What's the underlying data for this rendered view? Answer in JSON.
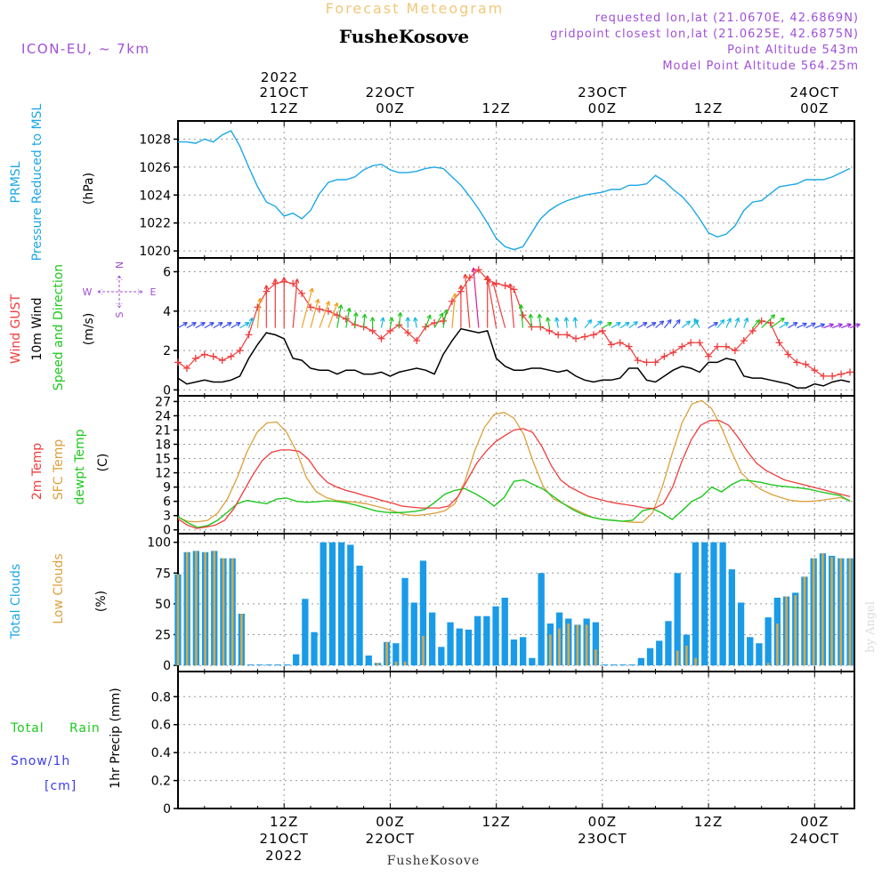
{
  "header": {
    "title": "Forecast Meteogram",
    "location": "FusheKosove",
    "model": "ICON-EU, ~ 7km",
    "requested": "requested lon,lat (21.0670E, 42.6869N)",
    "gridpoint": "gridpoint closest lon,lat (21.0625E, 42.6875N)",
    "point_alt": "Point Altitude 543m",
    "model_alt": "Model Point Altitude 564.25m"
  },
  "colors": {
    "pressure": "#1ca8e6",
    "gust": "#f03c3c",
    "wind": "#000000",
    "speed_dir": "#1ec81e",
    "t2m": "#f03c3c",
    "tsfc": "#dca03c",
    "dewpt": "#1ec81e",
    "total_clouds": "#1a9be8",
    "low_clouds": "#d8a848",
    "rain": "#1ec81e",
    "snow": "#3c3cf0",
    "title": "#f0c878",
    "purple": "#a050d8"
  },
  "time_axis": {
    "top_year": "2022",
    "top_labels": [
      {
        "l1": "21OCT",
        "l2": "12Z",
        "t": 12
      },
      {
        "l1": "22OCT",
        "l2": "00Z",
        "t": 24
      },
      {
        "l1": "",
        "l2": "12Z",
        "t": 36
      },
      {
        "l1": "23OCT",
        "l2": "00Z",
        "t": 48
      },
      {
        "l1": "",
        "l2": "12Z",
        "t": 60
      },
      {
        "l1": "24OCT",
        "l2": "00Z",
        "t": 72
      }
    ],
    "bottom_labels": [
      {
        "l1": "12Z",
        "l2": "21OCT",
        "l3": "2022",
        "t": 12
      },
      {
        "l1": "00Z",
        "l2": "22OCT",
        "l3": "",
        "t": 24
      },
      {
        "l1": "12Z",
        "l2": "",
        "l3": "",
        "t": 36
      },
      {
        "l1": "00Z",
        "l2": "23OCT",
        "l3": "",
        "t": 48
      },
      {
        "l1": "12Z",
        "l2": "",
        "l3": "",
        "t": 60
      },
      {
        "l1": "00Z",
        "l2": "24OCT",
        "l3": "",
        "t": 72
      }
    ],
    "footer": "FusheKosove"
  },
  "panels": {
    "pressure": {
      "label1": "PRMSL",
      "label2": "Pressure Reduced to MSL",
      "unit": "(hPa)",
      "ticks": [
        "1020",
        "1022",
        "1024",
        "1026",
        "1028"
      ]
    },
    "wind": {
      "gust_label": "Wind GUST",
      "wind_label": "10m Wind",
      "sd_label": "Speed and Direction",
      "unit": "(m/s)",
      "ticks": [
        "0",
        "2",
        "4",
        "6"
      ],
      "compass": {
        "n": "N",
        "s": "S",
        "w": "W",
        "e": "E"
      }
    },
    "temp": {
      "l1": "2m Temp",
      "l2": "SFC Temp",
      "l3": "dewpt Temp",
      "unit": "(C)",
      "ticks": [
        "0",
        "3",
        "6",
        "9",
        "12",
        "15",
        "18",
        "21",
        "24",
        "27"
      ]
    },
    "clouds": {
      "l1": "Total Clouds",
      "l2": "Low Clouds",
      "unit": "(%)",
      "ticks": [
        "0",
        "25",
        "50",
        "75",
        "100"
      ]
    },
    "precip": {
      "total": "Total",
      "rain": "Rain",
      "snow": "Snow/1h",
      "cm": "[cm]",
      "unit": "1hr Precip (mm)",
      "ticks": [
        "0",
        "0.2",
        "0.4",
        "0.6",
        "0.8"
      ]
    }
  },
  "watermark": "by Angel",
  "chart_data": {
    "type": "line",
    "x_unit": "hours from 2022-10-21 00Z",
    "xlim": [
      0,
      76.5
    ],
    "pressure_hpa": {
      "ylim": [
        1019.5,
        1029.3
      ],
      "x": [
        0,
        1,
        2,
        3,
        4,
        5,
        6,
        7,
        8,
        9,
        10,
        11,
        12,
        13,
        14,
        15,
        16,
        17,
        18,
        19,
        20,
        21,
        22,
        23,
        24,
        25,
        26,
        27,
        28,
        29,
        30,
        31,
        32,
        33,
        34,
        35,
        36,
        37,
        38,
        39,
        40,
        41,
        42,
        43,
        44,
        45,
        46,
        47,
        48,
        49,
        50,
        51,
        52,
        53,
        54,
        55,
        56,
        57,
        58,
        59,
        60,
        61,
        62,
        63,
        64,
        65,
        66,
        67,
        68,
        69,
        70,
        71,
        72,
        73,
        74,
        75,
        76
      ],
      "y": [
        1027.8,
        1027.8,
        1027.7,
        1028.0,
        1027.8,
        1028.3,
        1028.6,
        1027.5,
        1026.0,
        1024.6,
        1023.5,
        1023.2,
        1022.5,
        1022.7,
        1022.3,
        1022.9,
        1024.1,
        1024.9,
        1025.1,
        1025.1,
        1025.3,
        1025.8,
        1026.1,
        1026.2,
        1025.8,
        1025.6,
        1025.6,
        1025.7,
        1025.9,
        1026.0,
        1025.9,
        1025.3,
        1024.7,
        1023.9,
        1023.0,
        1022.0,
        1020.9,
        1020.3,
        1020.1,
        1020.3,
        1021.3,
        1022.3,
        1022.9,
        1023.3,
        1023.6,
        1023.8,
        1024.0,
        1024.1,
        1024.2,
        1024.4,
        1024.4,
        1024.7,
        1024.7,
        1024.8,
        1025.4,
        1025.0,
        1024.4,
        1023.9,
        1023.2,
        1022.3,
        1021.3,
        1021.0,
        1021.2,
        1021.8,
        1022.9,
        1023.5,
        1023.6,
        1024.1,
        1024.6,
        1024.7,
        1024.8,
        1025.1,
        1025.1,
        1025.1,
        1025.3,
        1025.6,
        1025.9
      ]
    },
    "wind_ms": {
      "ylim": [
        -0.3,
        6.7
      ],
      "gust_x": [
        0,
        1,
        2,
        3,
        4,
        5,
        6,
        7,
        8,
        9,
        10,
        11,
        12,
        13,
        14,
        15,
        16,
        17,
        18,
        19,
        20,
        21,
        22,
        23,
        24,
        25,
        26,
        27,
        28,
        29,
        30,
        31,
        32,
        33,
        34,
        35,
        36,
        37,
        38,
        39,
        40,
        41,
        42,
        43,
        44,
        45,
        46,
        47,
        48,
        49,
        50,
        51,
        52,
        53,
        54,
        55,
        56,
        57,
        58,
        59,
        60,
        61,
        62,
        63,
        64,
        65,
        66,
        67,
        68,
        69,
        70,
        71,
        72,
        73,
        74,
        75,
        76
      ],
      "gust": [
        1.4,
        1.1,
        1.6,
        1.8,
        1.7,
        1.5,
        1.7,
        2.0,
        2.8,
        4.2,
        5.0,
        5.4,
        5.5,
        5.4,
        4.9,
        4.2,
        4.1,
        4.0,
        3.8,
        3.6,
        3.3,
        3.2,
        3.0,
        2.6,
        3.0,
        3.3,
        2.9,
        2.5,
        3.2,
        3.4,
        3.5,
        4.5,
        5.0,
        5.7,
        6.1,
        5.6,
        5.4,
        5.3,
        5.1,
        3.8,
        3.2,
        3.2,
        3.0,
        2.8,
        2.8,
        2.6,
        2.7,
        2.8,
        3.0,
        2.3,
        2.4,
        2.2,
        1.5,
        1.4,
        1.4,
        1.7,
        1.9,
        2.2,
        2.4,
        2.4,
        1.7,
        2.2,
        2.2,
        2.0,
        2.5,
        3.0,
        3.5,
        3.4,
        2.4,
        1.8,
        1.4,
        1.3,
        1.0,
        0.7,
        0.7,
        0.8,
        0.9,
        1.2
      ],
      "wind": [
        0.6,
        0.3,
        0.4,
        0.5,
        0.4,
        0.4,
        0.5,
        0.7,
        1.6,
        2.3,
        2.9,
        2.8,
        2.6,
        1.6,
        1.5,
        1.1,
        1.0,
        1.0,
        0.8,
        1.0,
        1.0,
        0.8,
        0.8,
        0.9,
        0.7,
        0.9,
        1.0,
        1.1,
        1.0,
        0.8,
        1.8,
        2.5,
        3.1,
        3.0,
        2.9,
        3.0,
        1.6,
        1.2,
        1.0,
        1.0,
        1.1,
        1.1,
        1.0,
        0.9,
        1.0,
        0.7,
        0.5,
        0.4,
        0.5,
        0.5,
        0.6,
        1.1,
        1.1,
        0.5,
        0.4,
        0.7,
        1.0,
        1.2,
        1.1,
        0.9,
        1.4,
        1.4,
        1.6,
        1.5,
        0.7,
        0.6,
        0.6,
        0.5,
        0.4,
        0.3,
        0.1,
        0.1,
        0.3,
        0.2,
        0.4,
        0.5,
        0.4
      ],
      "arrows_dir_deg": [
        240,
        240,
        240,
        240,
        240,
        240,
        240,
        240,
        200,
        185,
        180,
        180,
        180,
        185,
        195,
        195,
        200,
        200,
        190,
        190,
        185,
        185,
        180,
        190,
        190,
        185,
        180,
        170,
        200,
        210,
        190,
        185,
        180,
        175,
        175,
        180,
        170,
        165,
        175,
        175,
        175,
        175,
        170,
        170,
        175,
        175,
        220,
        230,
        240,
        240,
        240,
        235,
        240,
        240,
        230,
        220,
        220,
        230,
        225,
        150,
        240,
        220,
        205,
        200,
        200,
        220,
        225,
        235,
        240,
        240,
        245,
        245,
        250,
        250,
        250,
        250,
        250
      ]
    },
    "temperature_c": {
      "ylim": [
        -0.8,
        28.2
      ],
      "t2m": [
        2.3,
        1.0,
        0.3,
        0.6,
        1.0,
        2.0,
        4.5,
        8.0,
        11.5,
        14.5,
        16.3,
        16.8,
        16.8,
        16.5,
        14.8,
        12.0,
        10.0,
        9.0,
        8.3,
        7.8,
        7.2,
        6.7,
        6.1,
        5.6,
        5.0,
        4.8,
        4.6,
        4.6,
        4.6,
        5.0,
        7.0,
        10.5,
        14.0,
        16.5,
        18.5,
        19.8,
        21.0,
        21.3,
        20.5,
        17.5,
        13.5,
        10.5,
        9.0,
        8.0,
        7.0,
        6.5,
        6.0,
        5.6,
        5.3,
        5.0,
        4.6,
        4.5,
        5.5,
        9.0,
        14.5,
        19.0,
        22.0,
        23.0,
        23.0,
        22.0,
        19.5,
        16.5,
        14.0,
        12.5,
        11.5,
        10.5,
        10.0,
        9.5,
        9.0,
        8.5,
        8.0,
        7.5,
        7.0
      ],
      "tsfc": [
        2.6,
        1.8,
        1.7,
        2.0,
        3.5,
        6.5,
        11.0,
        16.5,
        20.5,
        22.5,
        22.7,
        20.5,
        16.5,
        11.0,
        8.0,
        6.8,
        6.2,
        6.0,
        5.8,
        5.5,
        5.0,
        4.5,
        3.8,
        3.2,
        3.0,
        3.2,
        3.5,
        4.0,
        5.5,
        10.0,
        16.5,
        21.5,
        24.3,
        24.7,
        23.5,
        20.0,
        14.0,
        9.0,
        6.5,
        5.5,
        4.5,
        3.5,
        2.6,
        2.2,
        2.0,
        1.8,
        1.6,
        1.6,
        3.5,
        9.0,
        16.0,
        22.5,
        26.5,
        27.2,
        25.5,
        21.5,
        16.5,
        12.0,
        10.0,
        8.5,
        7.5,
        6.8,
        6.2,
        6.0,
        6.0,
        6.2,
        6.5,
        6.8,
        6.2
      ],
      "dewpt": [
        2.8,
        1.5,
        0.5,
        0.9,
        2.0,
        3.7,
        5.5,
        6.2,
        5.8,
        5.5,
        6.5,
        6.7,
        6.0,
        5.8,
        5.9,
        6.1,
        6.0,
        5.7,
        5.2,
        4.6,
        4.0,
        3.7,
        3.6,
        3.7,
        3.9,
        4.3,
        5.8,
        7.5,
        8.3,
        8.7,
        7.7,
        6.5,
        5.0,
        6.8,
        10.2,
        10.5,
        9.5,
        8.5,
        7.0,
        5.5,
        4.2,
        3.2,
        2.6,
        2.2,
        2.0,
        1.8,
        2.0,
        4.0,
        4.5,
        3.5,
        2.2,
        4.0,
        6.0,
        7.0,
        9.0,
        8.0,
        9.5,
        10.5,
        10.3,
        10.0,
        9.5,
        9.2,
        9.0,
        8.8,
        8.5,
        8.0,
        7.6,
        7.2,
        6.0
      ],
      "t_x_scale": 1.0
    },
    "clouds_pct": {
      "ylim": [
        -5,
        107
      ],
      "total": [
        74,
        92,
        93,
        92,
        93,
        87,
        87,
        42,
        0,
        0,
        0,
        0,
        0,
        9,
        54,
        27,
        100,
        100,
        100,
        98,
        81,
        8,
        2,
        19,
        18,
        71,
        51,
        85,
        43,
        15,
        35,
        30,
        29,
        40,
        40,
        48,
        55,
        21,
        23,
        6,
        75,
        34,
        43,
        38,
        33,
        38,
        35,
        0,
        0,
        0,
        0,
        6,
        14,
        20,
        36,
        75,
        25,
        100,
        100,
        100,
        100,
        78,
        51,
        23,
        18,
        39,
        55,
        56,
        59,
        72,
        87,
        91,
        89,
        87,
        87
      ],
      "low": [
        74,
        92,
        93,
        92,
        93,
        87,
        87,
        42,
        0,
        0,
        0,
        0,
        0,
        0,
        0,
        0,
        0,
        0,
        0,
        0,
        0,
        0,
        2,
        19,
        3,
        3,
        0,
        24,
        0,
        0,
        0,
        0,
        0,
        0,
        0,
        0,
        0,
        0,
        0,
        0,
        0,
        25,
        30,
        34,
        33,
        33,
        13,
        0,
        0,
        0,
        0,
        0,
        0,
        0,
        0,
        12,
        16,
        6,
        0,
        0,
        0,
        0,
        0,
        0,
        0,
        2,
        34,
        56,
        57,
        72,
        87,
        91,
        88,
        87,
        87
      ]
    },
    "precip_mm": {
      "ylim": [
        0,
        0.98
      ],
      "values": []
    }
  }
}
